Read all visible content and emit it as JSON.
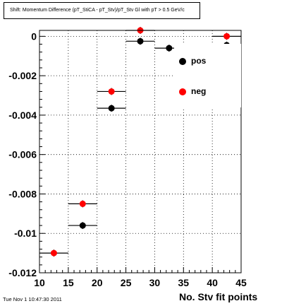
{
  "title": "Shift: Momentum Difference (pT_StiCA - pT_Stv)/pT_Stv Gl with pT > 0.5 GeV/c",
  "timestamp": "Tue Nov  1 10:47:30 2011",
  "chart_data": {
    "type": "scatter",
    "xlabel": "No. Stv fit points",
    "ylabel": "",
    "xlim": [
      10,
      45
    ],
    "ylim": [
      -0.012,
      0.0003
    ],
    "xticks": [
      10,
      15,
      20,
      25,
      30,
      35,
      40,
      45
    ],
    "yticks": [
      -0.012,
      -0.01,
      -0.008,
      -0.006,
      -0.004,
      -0.002,
      0
    ],
    "ytick_labels": [
      "-0.012",
      "-0.01",
      "-0.008",
      "-0.006",
      "-0.004",
      "-0.002",
      "0"
    ],
    "xtick_labels": [
      "10",
      "15",
      "20",
      "25",
      "30",
      "35",
      "40",
      "45"
    ],
    "grid": true,
    "legend_position": "top-right",
    "series": [
      {
        "name": "pos",
        "color": "#000000",
        "points": [
          {
            "x": 17.5,
            "y": -0.0096,
            "xerr": 2.5
          },
          {
            "x": 22.5,
            "y": -0.00365,
            "xerr": 2.5
          },
          {
            "x": 27.5,
            "y": -0.00025,
            "xerr": 2.5
          },
          {
            "x": 32.5,
            "y": -0.0006,
            "xerr": 2.5
          },
          {
            "x": 42.5,
            "y": -0.00045,
            "xerr": 2.5
          }
        ]
      },
      {
        "name": "neg",
        "color": "#ff0000",
        "points": [
          {
            "x": 12.5,
            "y": -0.011,
            "xerr": 2.5
          },
          {
            "x": 17.5,
            "y": -0.0085,
            "xerr": 2.5
          },
          {
            "x": 22.5,
            "y": -0.0028,
            "xerr": 2.5
          },
          {
            "x": 27.5,
            "y": 0.0003,
            "xerr": 2.5
          },
          {
            "x": 42.5,
            "y": 0.0,
            "xerr": 2.5
          }
        ]
      }
    ]
  }
}
